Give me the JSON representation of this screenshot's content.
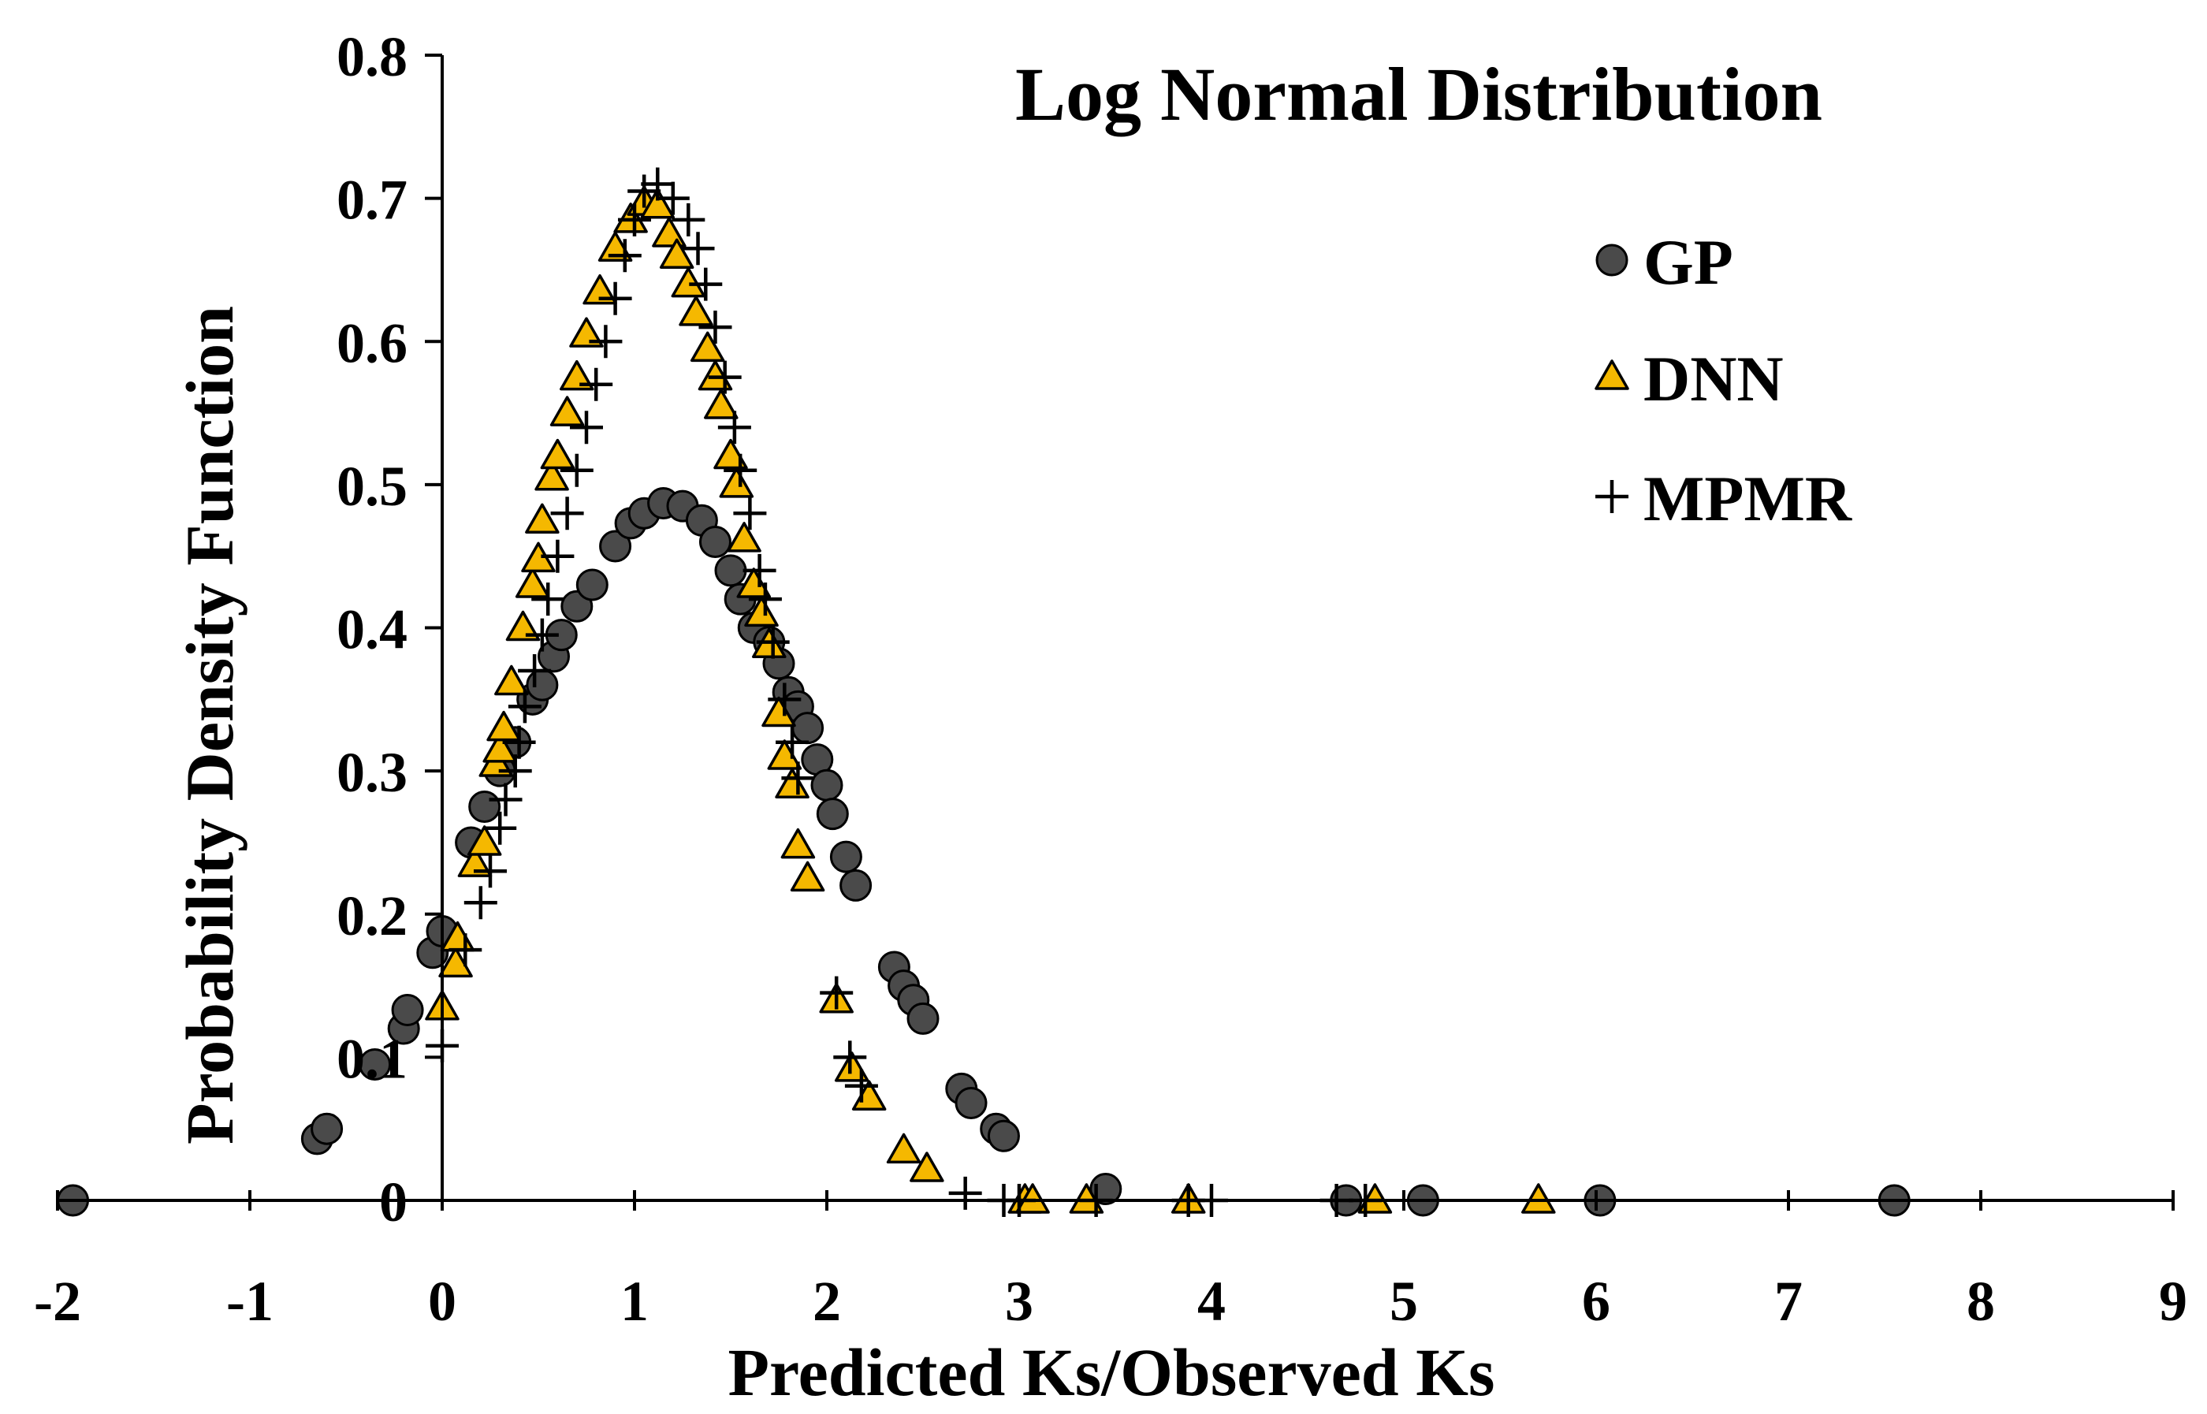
{
  "chart_data": {
    "type": "scatter",
    "title": "Log Normal Distribution",
    "xlabel": "Predicted Ks/Observed Ks",
    "ylabel": "Probability Density Function",
    "xlim": [
      -2,
      9
    ],
    "ylim": [
      0,
      0.8
    ],
    "x_ticks": [
      -2,
      -1,
      0,
      1,
      2,
      3,
      4,
      5,
      6,
      7,
      8,
      9
    ],
    "x_tick_labels": [
      "-2",
      "-1",
      "0",
      "1",
      "2",
      "3",
      "4",
      "5",
      "6",
      "7",
      "8",
      "9"
    ],
    "y_ticks": [
      0,
      0.1,
      0.2,
      0.3,
      0.4,
      0.5,
      0.6,
      0.7,
      0.8
    ],
    "y_tick_labels": [
      "0",
      "0.1",
      "0.2",
      "0.3",
      "0.4",
      "0.5",
      "0.6",
      "0.7",
      "0.8"
    ],
    "grid": false,
    "legend_position": "top-right",
    "colors": {
      "gp_fill": "#4a4a4a",
      "dnn_fill": "#f5b800",
      "marker_stroke": "#000000"
    },
    "series": [
      {
        "name": "GP",
        "marker": "circle",
        "points": [
          [
            -1.92,
            0.0
          ],
          [
            -0.65,
            0.043
          ],
          [
            -0.6,
            0.05
          ],
          [
            -0.35,
            0.095
          ],
          [
            -0.2,
            0.12
          ],
          [
            -0.18,
            0.133
          ],
          [
            -0.05,
            0.173
          ],
          [
            0.0,
            0.188
          ],
          [
            0.15,
            0.25
          ],
          [
            0.22,
            0.275
          ],
          [
            0.3,
            0.3
          ],
          [
            0.38,
            0.32
          ],
          [
            0.47,
            0.35
          ],
          [
            0.52,
            0.36
          ],
          [
            0.58,
            0.38
          ],
          [
            0.62,
            0.395
          ],
          [
            0.7,
            0.415
          ],
          [
            0.78,
            0.43
          ],
          [
            0.9,
            0.457
          ],
          [
            0.98,
            0.473
          ],
          [
            1.05,
            0.48
          ],
          [
            1.15,
            0.487
          ],
          [
            1.25,
            0.485
          ],
          [
            1.35,
            0.475
          ],
          [
            1.42,
            0.46
          ],
          [
            1.5,
            0.44
          ],
          [
            1.55,
            0.42
          ],
          [
            1.62,
            0.4
          ],
          [
            1.7,
            0.39
          ],
          [
            1.75,
            0.375
          ],
          [
            1.8,
            0.355
          ],
          [
            1.85,
            0.345
          ],
          [
            1.9,
            0.33
          ],
          [
            1.95,
            0.308
          ],
          [
            2.0,
            0.29
          ],
          [
            2.03,
            0.27
          ],
          [
            2.1,
            0.24
          ],
          [
            2.15,
            0.22
          ],
          [
            2.35,
            0.163
          ],
          [
            2.4,
            0.15
          ],
          [
            2.45,
            0.14
          ],
          [
            2.5,
            0.127
          ],
          [
            2.7,
            0.078
          ],
          [
            2.75,
            0.068
          ],
          [
            2.88,
            0.05
          ],
          [
            2.92,
            0.045
          ],
          [
            3.45,
            0.008
          ],
          [
            4.7,
            0.0
          ],
          [
            5.1,
            0.0
          ],
          [
            6.02,
            0.0
          ],
          [
            7.55,
            0.0
          ]
        ]
      },
      {
        "name": "DNN",
        "marker": "triangle",
        "points": [
          [
            0.0,
            0.135
          ],
          [
            0.07,
            0.165
          ],
          [
            0.08,
            0.183
          ],
          [
            0.17,
            0.235
          ],
          [
            0.22,
            0.25
          ],
          [
            0.28,
            0.305
          ],
          [
            0.3,
            0.315
          ],
          [
            0.32,
            0.33
          ],
          [
            0.36,
            0.362
          ],
          [
            0.42,
            0.4
          ],
          [
            0.47,
            0.43
          ],
          [
            0.5,
            0.448
          ],
          [
            0.52,
            0.475
          ],
          [
            0.57,
            0.505
          ],
          [
            0.6,
            0.52
          ],
          [
            0.65,
            0.55
          ],
          [
            0.7,
            0.575
          ],
          [
            0.75,
            0.605
          ],
          [
            0.82,
            0.635
          ],
          [
            0.9,
            0.665
          ],
          [
            0.98,
            0.685
          ],
          [
            1.05,
            0.697
          ],
          [
            1.12,
            0.695
          ],
          [
            1.18,
            0.675
          ],
          [
            1.22,
            0.66
          ],
          [
            1.28,
            0.64
          ],
          [
            1.32,
            0.62
          ],
          [
            1.38,
            0.595
          ],
          [
            1.42,
            0.575
          ],
          [
            1.45,
            0.555
          ],
          [
            1.5,
            0.52
          ],
          [
            1.53,
            0.5
          ],
          [
            1.57,
            0.462
          ],
          [
            1.62,
            0.43
          ],
          [
            1.66,
            0.41
          ],
          [
            1.7,
            0.388
          ],
          [
            1.75,
            0.34
          ],
          [
            1.78,
            0.31
          ],
          [
            1.82,
            0.29
          ],
          [
            1.85,
            0.248
          ],
          [
            1.9,
            0.225
          ],
          [
            2.05,
            0.14
          ],
          [
            2.13,
            0.092
          ],
          [
            2.22,
            0.072
          ],
          [
            2.4,
            0.035
          ],
          [
            2.52,
            0.022
          ],
          [
            3.03,
            0.0
          ],
          [
            3.07,
            0.0
          ],
          [
            3.35,
            0.0
          ],
          [
            3.88,
            0.0
          ],
          [
            4.85,
            0.0
          ],
          [
            5.7,
            0.0
          ]
        ]
      },
      {
        "name": "MPMR",
        "marker": "plus",
        "points": [
          [
            0.0,
            0.108
          ],
          [
            0.12,
            0.175
          ],
          [
            0.2,
            0.208
          ],
          [
            0.25,
            0.23
          ],
          [
            0.3,
            0.26
          ],
          [
            0.33,
            0.28
          ],
          [
            0.38,
            0.3
          ],
          [
            0.4,
            0.32
          ],
          [
            0.43,
            0.345
          ],
          [
            0.48,
            0.37
          ],
          [
            0.52,
            0.395
          ],
          [
            0.55,
            0.42
          ],
          [
            0.6,
            0.45
          ],
          [
            0.65,
            0.48
          ],
          [
            0.7,
            0.51
          ],
          [
            0.75,
            0.54
          ],
          [
            0.8,
            0.57
          ],
          [
            0.85,
            0.6
          ],
          [
            0.9,
            0.63
          ],
          [
            0.95,
            0.66
          ],
          [
            1.0,
            0.685
          ],
          [
            1.05,
            0.705
          ],
          [
            1.12,
            0.71
          ],
          [
            1.2,
            0.7
          ],
          [
            1.28,
            0.685
          ],
          [
            1.33,
            0.665
          ],
          [
            1.37,
            0.64
          ],
          [
            1.42,
            0.61
          ],
          [
            1.47,
            0.575
          ],
          [
            1.52,
            0.54
          ],
          [
            1.55,
            0.51
          ],
          [
            1.6,
            0.48
          ],
          [
            1.65,
            0.44
          ],
          [
            1.68,
            0.42
          ],
          [
            1.72,
            0.39
          ],
          [
            1.78,
            0.35
          ],
          [
            1.82,
            0.32
          ],
          [
            1.85,
            0.295
          ],
          [
            2.05,
            0.145
          ],
          [
            2.12,
            0.1
          ],
          [
            2.18,
            0.08
          ],
          [
            2.72,
            0.005
          ],
          [
            2.92,
            0.0
          ],
          [
            3.0,
            0.0
          ],
          [
            3.4,
            0.0
          ],
          [
            3.88,
            0.0
          ],
          [
            4.0,
            0.0
          ],
          [
            4.65,
            0.0
          ],
          [
            4.8,
            0.0
          ]
        ]
      }
    ]
  }
}
